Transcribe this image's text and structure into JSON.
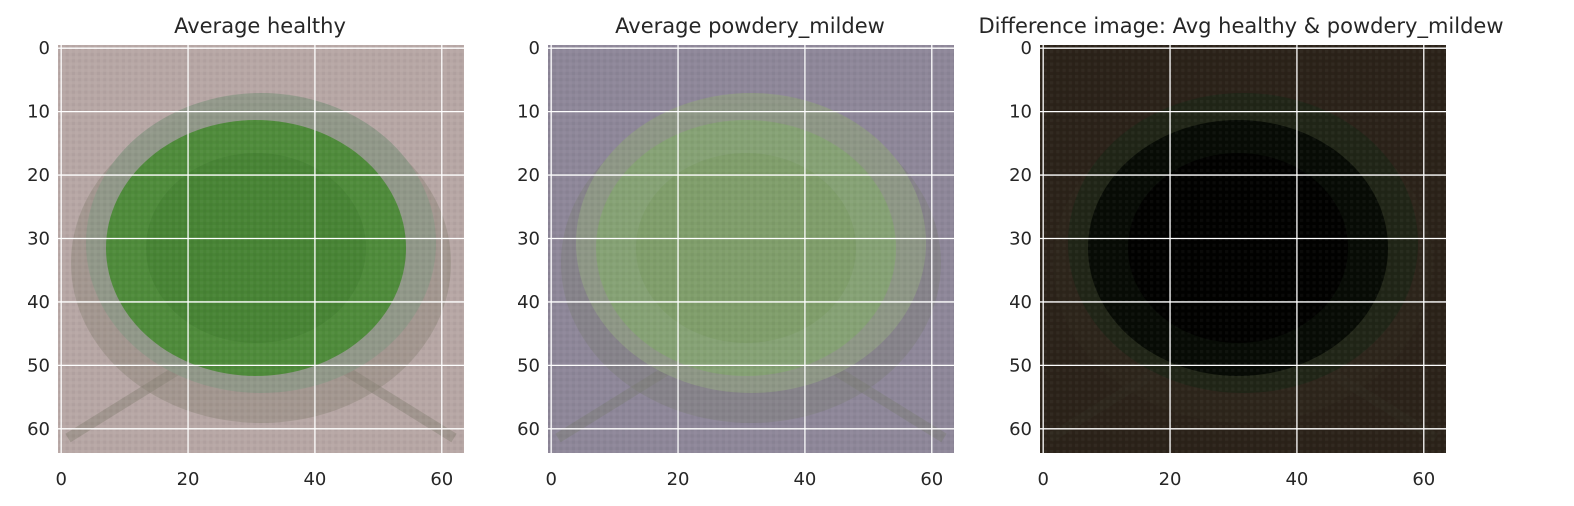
{
  "panels": [
    {
      "id": "avg-healthy",
      "title": "Average healthy",
      "x_ticks": [
        "0",
        "20",
        "40",
        "60"
      ],
      "y_ticks": [
        "0",
        "10",
        "20",
        "30",
        "40",
        "50",
        "60"
      ],
      "image": {
        "background": "#b7a7a5",
        "leaf_outer": "#8f9888",
        "leaf_inner": "#4f8b3b",
        "leaf_core": "#478235",
        "edge_shadow": "#8b8478"
      }
    },
    {
      "id": "avg-powdery-mildew",
      "title": "Average powdery_mildew",
      "x_ticks": [
        "0",
        "20",
        "40",
        "60"
      ],
      "y_ticks": [
        "0",
        "10",
        "20",
        "30",
        "40",
        "50",
        "60"
      ],
      "image": {
        "background": "#8e8799",
        "leaf_outer": "#8f9985",
        "leaf_inner": "#86a275",
        "leaf_core": "#7f9d6a",
        "edge_shadow": "#7d7f78"
      }
    },
    {
      "id": "difference",
      "title": "Difference image: Avg healthy & powdery_mildew",
      "x_ticks": [
        "0",
        "20",
        "40",
        "60"
      ],
      "y_ticks": [
        "0",
        "10",
        "20",
        "30",
        "40",
        "50",
        "60"
      ],
      "image": {
        "background": "#2b2219",
        "leaf_outer": "#1f2617",
        "leaf_inner": "#070b05",
        "leaf_core": "#000000",
        "edge_shadow": "#302a20"
      }
    }
  ],
  "grid": true,
  "colors": {
    "grid": "#ffffff",
    "tick_text": "#262626",
    "title_text": "#262626"
  }
}
